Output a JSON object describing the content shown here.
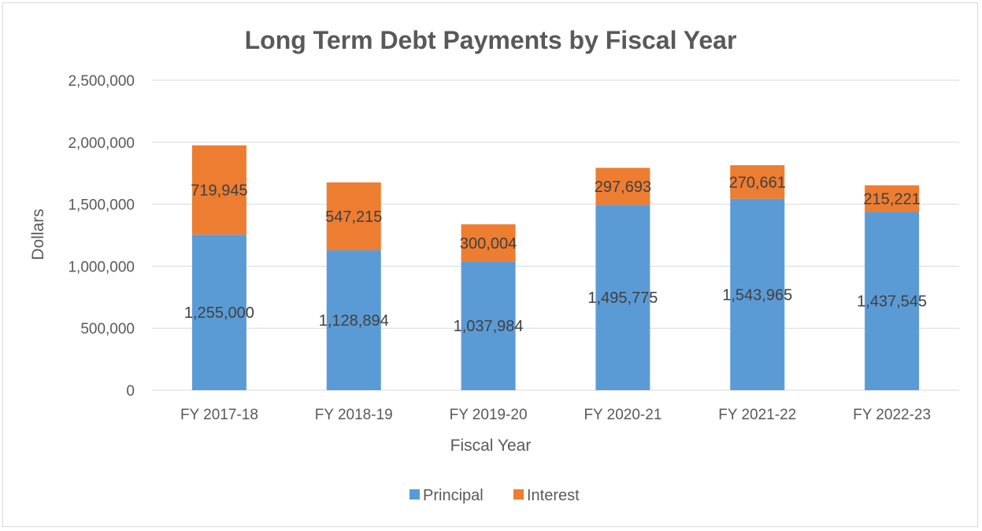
{
  "chart_data": {
    "type": "bar",
    "stacked": true,
    "title": "Long Term Debt Payments by Fiscal Year",
    "xlabel": "Fiscal Year",
    "ylabel": "Dollars",
    "categories": [
      "FY 2017-18",
      "FY 2018-19",
      "FY 2019-20",
      "FY 2020-21",
      "FY 2021-22",
      "FY 2022-23"
    ],
    "series": [
      {
        "name": "Principal",
        "color": "#5b9bd5",
        "values": [
          1255000,
          1128894,
          1037984,
          1495775,
          1543965,
          1437545
        ],
        "labels": [
          "1,255,000",
          "1,128,894",
          "1,037,984",
          "1,495,775",
          "1,543,965",
          "1,437,545"
        ]
      },
      {
        "name": "Interest",
        "color": "#ed7d31",
        "values": [
          719945,
          547215,
          300004,
          297693,
          270661,
          215221
        ],
        "labels": [
          "719,945",
          "547,215",
          "300,004",
          "297,693",
          "270,661",
          "215,221"
        ]
      }
    ],
    "ylim": [
      0,
      2500000
    ],
    "yticks": [
      0,
      500000,
      1000000,
      1500000,
      2000000,
      2500000
    ],
    "ytick_labels": [
      "0",
      "500,000",
      "1,000,000",
      "1,500,000",
      "2,000,000",
      "2,500,000"
    ],
    "grid": true,
    "legend_position": "bottom"
  }
}
